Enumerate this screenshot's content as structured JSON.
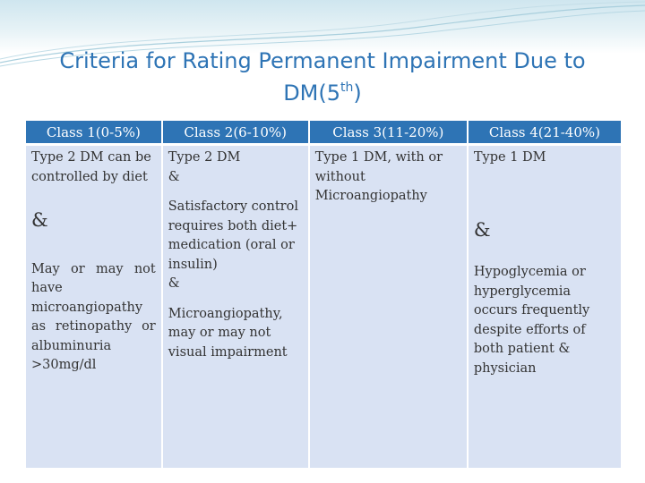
{
  "slide": {
    "title_main": "Criteria for Rating Permanent Impairment Due to DM(5",
    "title_sup": "th",
    "title_end": ")"
  },
  "table": {
    "headers": [
      "Class 1(0-5%)",
      "Class 2(6-10%)",
      "Class 3(11-20%)",
      "Class 4(21-40%)"
    ],
    "class1": {
      "p1": "Type 2 DM can be controlled by diet",
      "amp": "&",
      "p2": "May or may not have microangiopathy as retinopathy or albuminuria >30mg/dl"
    },
    "class2": {
      "p1": "Type 2 DM",
      "amp1": "&",
      "p2": "Satisfactory control requires both diet+ medication (oral or insulin)",
      "amp2": "&",
      "p3": "Microangiopathy, may or may not visual impairment"
    },
    "class3": {
      "p1": "Type 1 DM, with or without Microangiopathy"
    },
    "class4": {
      "p1": "Type 1 DM",
      "amp": "&",
      "p2": "Hypoglycemia or hyperglycemia occurs frequently despite efforts of both patient & physician"
    }
  },
  "colors": {
    "header_bg": "#2e74b5",
    "cell_bg": "#d9e2f3",
    "title": "#2e74b5"
  }
}
